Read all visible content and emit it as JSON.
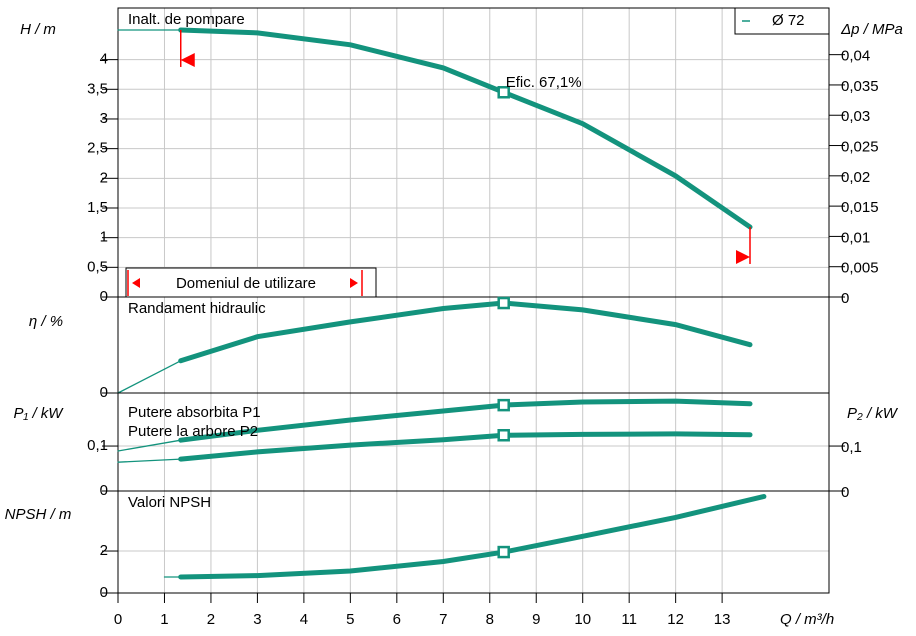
{
  "chart_data": [
    {
      "type": "line",
      "title": "Inalt. de pompare",
      "ylabel": "H / m",
      "y2label": "Δp / MPa",
      "xlim": [
        0,
        15.3
      ],
      "ylim": [
        0,
        4.87
      ],
      "y2lim": [
        0,
        0.0477
      ],
      "yticks": [
        0,
        {
          "value": 0.5,
          "label": "0,5"
        },
        1,
        {
          "value": 1.5,
          "label": "1,5"
        },
        2,
        {
          "value": 2.5,
          "label": "2,5"
        },
        3,
        {
          "value": 3.5,
          "label": "3,5"
        },
        4
      ],
      "y2ticks": [
        0,
        {
          "value": 0.005,
          "label": "0,005"
        },
        {
          "value": 0.01,
          "label": "0,01"
        },
        {
          "value": 0.015,
          "label": "0,015"
        },
        {
          "value": 0.02,
          "label": "0,02"
        },
        {
          "value": 0.025,
          "label": "0,025"
        },
        {
          "value": 0.03,
          "label": "0,03"
        },
        {
          "value": 0.035,
          "label": "0,035"
        },
        {
          "value": 0.04,
          "label": "0,04"
        }
      ],
      "operating_q": 8.3,
      "operating_label": "Efic.  67,1%",
      "range": [
        1.35,
        13.6
      ],
      "range_label": "Domeniul de utilizare",
      "series": [
        {
          "name": "Ø 72",
          "color": "#13937d",
          "x": [
            0,
            1.35,
            3,
            5,
            7,
            8.3,
            10,
            12,
            13.6
          ],
          "values": [
            4.5,
            4.5,
            4.45,
            4.25,
            3.86,
            3.45,
            2.92,
            2.04,
            1.18
          ]
        }
      ]
    },
    {
      "type": "line",
      "title": "Randament hidraulic",
      "ylabel": "η / %",
      "xlim": [
        0,
        15.3
      ],
      "ylim": [
        0,
        71.6
      ],
      "yticks": [
        0
      ],
      "series": [
        {
          "color": "#13937d",
          "x": [
            0,
            1.35,
            3,
            5,
            7,
            8.3,
            10,
            12,
            13.6
          ],
          "values": [
            0,
            24,
            42,
            53,
            63,
            67.1,
            62,
            51,
            36
          ]
        }
      ]
    },
    {
      "type": "line",
      "ylabel": "P₁ / kW",
      "y2label": "P₂ / kW",
      "xlim": [
        0,
        15.3
      ],
      "ylim": [
        0,
        0.218
      ],
      "y2lim": [
        0,
        0.218
      ],
      "yticks": [
        0,
        {
          "value": 0.1,
          "label": "0,1"
        }
      ],
      "y2ticks": [
        0,
        {
          "value": 0.1,
          "label": "0,1"
        }
      ],
      "series": [
        {
          "name": "Putere absorbita P1",
          "color": "#13937d",
          "x": [
            0,
            1.35,
            3,
            5,
            7,
            8.3,
            10,
            12,
            13.6
          ],
          "values": [
            0.089,
            0.113,
            0.135,
            0.158,
            0.178,
            0.191,
            0.198,
            0.2,
            0.194
          ]
        },
        {
          "name": "Putere la arbore P2",
          "color": "#13937d",
          "x": [
            0,
            1.35,
            3,
            5,
            7,
            8.3,
            10,
            12,
            13.6
          ],
          "values": [
            0.064,
            0.071,
            0.087,
            0.102,
            0.114,
            0.124,
            0.126,
            0.127,
            0.125
          ]
        }
      ]
    },
    {
      "type": "line",
      "title": "Valori NPSH",
      "ylabel": "NPSH  / m",
      "xlabel": "Q / m³/h",
      "xlim": [
        0,
        15.3
      ],
      "ylim": [
        0,
        4.86
      ],
      "yticks": [
        0,
        2
      ],
      "xticks": [
        0,
        1,
        2,
        3,
        4,
        5,
        6,
        7,
        8,
        9,
        10,
        11,
        12,
        13
      ],
      "series": [
        {
          "color": "#13937d",
          "x": [
            1,
            1.35,
            3,
            5,
            7,
            8.3,
            10,
            12,
            13.9
          ],
          "values": [
            0.76,
            0.76,
            0.83,
            1.05,
            1.5,
            1.95,
            2.7,
            3.6,
            4.6
          ]
        }
      ]
    }
  ]
}
